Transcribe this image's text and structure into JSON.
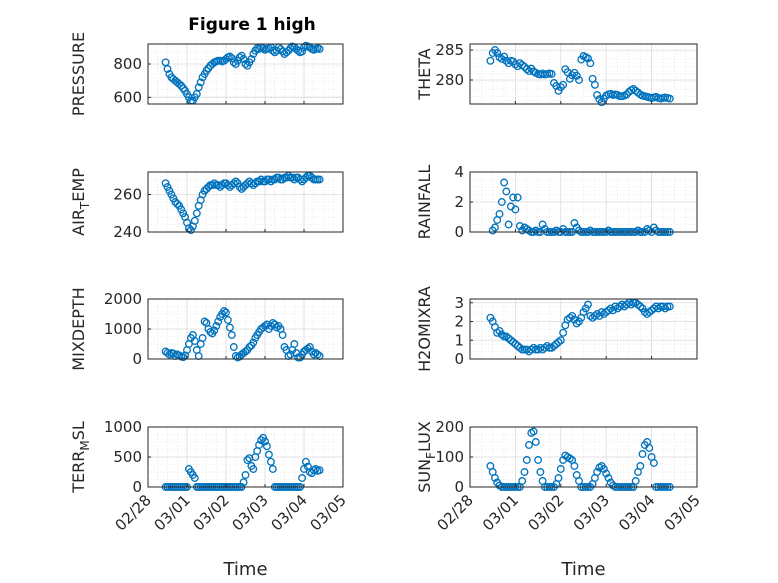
{
  "figure": {
    "title": "Figure 1 high",
    "background": "#ffffff",
    "marker_color": "#0072BD",
    "time_ticks": [
      "02/28",
      "03/01",
      "03/02",
      "03/03",
      "03/04",
      "03/05"
    ]
  },
  "chart_data": [
    {
      "type": "scatter",
      "ylabel": "PRESSURE",
      "xlabel": "",
      "title": "Figure 1 high",
      "xlim": [
        0,
        5
      ],
      "ylim": [
        560,
        920
      ],
      "yticks": [
        600,
        800
      ],
      "grid": true,
      "x": [
        0.45,
        0.5,
        0.55,
        0.6,
        0.65,
        0.7,
        0.75,
        0.8,
        0.85,
        0.9,
        0.95,
        1.0,
        1.05,
        1.1,
        1.15,
        1.2,
        1.25,
        1.3,
        1.35,
        1.4,
        1.45,
        1.5,
        1.55,
        1.6,
        1.65,
        1.7,
        1.75,
        1.8,
        1.85,
        1.9,
        1.95,
        2.0,
        2.05,
        2.1,
        2.15,
        2.2,
        2.25,
        2.3,
        2.35,
        2.4,
        2.45,
        2.5,
        2.55,
        2.6,
        2.65,
        2.7,
        2.75,
        2.8,
        2.85,
        2.9,
        2.95,
        3.0,
        3.05,
        3.1,
        3.15,
        3.2,
        3.25,
        3.3,
        3.35,
        3.4,
        3.45,
        3.5,
        3.55,
        3.6,
        3.65,
        3.7,
        3.75,
        3.8,
        3.85,
        3.9,
        3.95,
        4.0,
        4.05,
        4.1,
        4.15,
        4.2,
        4.25,
        4.3,
        4.35,
        4.4
      ],
      "y": [
        810,
        770,
        740,
        720,
        710,
        700,
        690,
        680,
        670,
        655,
        640,
        620,
        600,
        580,
        580,
        600,
        620,
        660,
        690,
        720,
        740,
        760,
        775,
        790,
        800,
        810,
        815,
        820,
        820,
        815,
        820,
        830,
        840,
        845,
        835,
        810,
        800,
        820,
        840,
        850,
        830,
        800,
        790,
        810,
        830,
        860,
        880,
        895,
        890,
        900,
        895,
        885,
        890,
        895,
        900,
        880,
        870,
        880,
        900,
        890,
        875,
        860,
        870,
        880,
        895,
        905,
        900,
        890,
        880,
        870,
        875,
        900,
        910,
        905,
        900,
        890,
        885,
        890,
        895,
        890
      ]
    },
    {
      "type": "scatter",
      "ylabel": "THETA",
      "xlabel": "",
      "xlim": [
        0,
        5
      ],
      "ylim": [
        276,
        286
      ],
      "yticks": [
        280,
        285
      ],
      "grid": true,
      "x": [
        0.45,
        0.5,
        0.55,
        0.6,
        0.65,
        0.7,
        0.75,
        0.8,
        0.85,
        0.9,
        0.95,
        1.0,
        1.05,
        1.1,
        1.15,
        1.2,
        1.25,
        1.3,
        1.35,
        1.4,
        1.45,
        1.5,
        1.55,
        1.6,
        1.65,
        1.7,
        1.75,
        1.8,
        1.85,
        1.9,
        1.95,
        2.0,
        2.05,
        2.1,
        2.15,
        2.2,
        2.25,
        2.3,
        2.35,
        2.4,
        2.45,
        2.5,
        2.55,
        2.6,
        2.65,
        2.7,
        2.75,
        2.8,
        2.85,
        2.9,
        2.95,
        3.0,
        3.05,
        3.1,
        3.15,
        3.2,
        3.25,
        3.3,
        3.35,
        3.4,
        3.45,
        3.5,
        3.55,
        3.6,
        3.65,
        3.7,
        3.75,
        3.8,
        3.85,
        3.9,
        3.95,
        4.0,
        4.05,
        4.1,
        4.15,
        4.2,
        4.25,
        4.3,
        4.35,
        4.4
      ],
      "y": [
        283.2,
        284.5,
        285,
        284.5,
        283.8,
        283.5,
        283.9,
        283.2,
        282.8,
        283.2,
        283.1,
        282.6,
        282.3,
        282.8,
        282.5,
        282.2,
        281.8,
        281.5,
        281.9,
        281.4,
        281.2,
        281.0,
        280.9,
        281.1,
        280.9,
        281.0,
        281.1,
        281.0,
        279.5,
        279.0,
        278.2,
        278.8,
        279.2,
        281.8,
        281.3,
        280.2,
        280.8,
        281.2,
        280.7,
        280.0,
        283.4,
        284.0,
        283.8,
        283.6,
        282.8,
        280.2,
        279.2,
        277.5,
        276.8,
        276.3,
        276.9,
        277.4,
        277.6,
        277.7,
        277.5,
        277.6,
        277.5,
        277.3,
        277.3,
        277.4,
        277.6,
        278.0,
        278.3,
        278.5,
        278.2,
        277.9,
        277.6,
        277.4,
        277.3,
        277.2,
        277.1,
        277.0,
        277.1,
        277.2,
        277.0,
        276.9,
        277.0,
        277.1,
        277.0,
        276.9
      ]
    },
    {
      "type": "scatter",
      "ylabel": "AIR_T_EMP",
      "xlabel": "",
      "xlim": [
        0,
        5
      ],
      "ylim": [
        240,
        272
      ],
      "yticks": [
        240,
        260
      ],
      "grid": true,
      "x": [
        0.45,
        0.5,
        0.55,
        0.6,
        0.65,
        0.7,
        0.75,
        0.8,
        0.85,
        0.9,
        0.95,
        1.0,
        1.05,
        1.1,
        1.15,
        1.2,
        1.25,
        1.3,
        1.35,
        1.4,
        1.45,
        1.5,
        1.55,
        1.6,
        1.65,
        1.7,
        1.75,
        1.8,
        1.85,
        1.9,
        1.95,
        2.0,
        2.05,
        2.1,
        2.15,
        2.2,
        2.25,
        2.3,
        2.35,
        2.4,
        2.45,
        2.5,
        2.55,
        2.6,
        2.65,
        2.7,
        2.75,
        2.8,
        2.85,
        2.9,
        2.95,
        3.0,
        3.05,
        3.1,
        3.15,
        3.2,
        3.25,
        3.3,
        3.35,
        3.4,
        3.45,
        3.5,
        3.55,
        3.6,
        3.65,
        3.7,
        3.75,
        3.8,
        3.85,
        3.9,
        3.95,
        4.0,
        4.05,
        4.1,
        4.15,
        4.2,
        4.25,
        4.3,
        4.35,
        4.4
      ],
      "y": [
        266,
        264,
        262,
        260,
        258,
        256,
        255,
        254,
        252,
        250,
        248,
        245,
        242,
        241,
        243,
        246,
        250,
        254,
        257,
        260,
        262,
        263,
        264,
        265,
        265,
        266,
        265,
        265,
        264,
        265,
        266,
        266,
        265,
        264,
        265,
        266,
        267,
        266,
        264,
        263,
        264,
        265,
        266,
        267,
        266,
        265,
        266,
        267,
        267,
        268,
        267,
        267,
        268,
        268,
        267,
        268,
        268,
        269,
        269,
        268,
        268,
        269,
        269,
        270,
        269,
        269,
        268,
        269,
        269,
        268,
        267,
        268,
        269,
        270,
        270,
        269,
        268,
        268,
        268,
        268
      ]
    },
    {
      "type": "scatter",
      "ylabel": "RAINFALL",
      "xlabel": "",
      "xlim": [
        0,
        5
      ],
      "ylim": [
        0,
        4
      ],
      "yticks": [
        0,
        2,
        4
      ],
      "grid": true,
      "x": [
        0.5,
        0.55,
        0.6,
        0.65,
        0.7,
        0.75,
        0.8,
        0.85,
        0.9,
        0.95,
        1.0,
        1.05,
        1.1,
        1.15,
        1.2,
        1.25,
        1.3,
        1.35,
        1.4,
        1.45,
        1.5,
        1.55,
        1.6,
        1.65,
        1.7,
        1.75,
        1.8,
        1.85,
        1.9,
        1.95,
        2.0,
        2.05,
        2.1,
        2.15,
        2.2,
        2.25,
        2.3,
        2.35,
        2.4,
        2.45,
        2.5,
        2.55,
        2.6,
        2.65,
        2.7,
        2.75,
        2.8,
        2.85,
        2.9,
        2.95,
        3.0,
        3.05,
        3.1,
        3.15,
        3.2,
        3.25,
        3.3,
        3.35,
        3.4,
        3.45,
        3.5,
        3.55,
        3.6,
        3.65,
        3.7,
        3.75,
        3.8,
        3.85,
        3.9,
        3.95,
        4.0,
        4.05,
        4.1,
        4.15,
        4.2,
        4.25,
        4.3,
        4.35,
        4.4
      ],
      "y": [
        0.1,
        0.3,
        0.8,
        1.2,
        2.0,
        3.3,
        2.7,
        0.5,
        1.7,
        2.3,
        1.5,
        2.3,
        0.4,
        0.1,
        0.3,
        0.2,
        0.1,
        0,
        0,
        0.1,
        0,
        0,
        0.5,
        0.2,
        0,
        0,
        0,
        0,
        0.1,
        0,
        0,
        0.2,
        0,
        0,
        0,
        0,
        0.6,
        0.3,
        0.1,
        0,
        0,
        0,
        0,
        0.1,
        0,
        0,
        0,
        0,
        0,
        0,
        0,
        0.1,
        0,
        0,
        0,
        0,
        0,
        0,
        0,
        0,
        0,
        0,
        0,
        0,
        0.1,
        0,
        0,
        0,
        0.2,
        0.1,
        0,
        0.3,
        0.1,
        0,
        0,
        0,
        0,
        0,
        0
      ]
    },
    {
      "type": "scatter",
      "ylabel": "MIXDEPTH",
      "xlabel": "",
      "xlim": [
        0,
        5
      ],
      "ylim": [
        0,
        2000
      ],
      "yticks": [
        0,
        1000,
        2000
      ],
      "grid": true,
      "x": [
        0.45,
        0.5,
        0.55,
        0.6,
        0.65,
        0.7,
        0.75,
        0.8,
        0.85,
        0.9,
        0.95,
        1.0,
        1.05,
        1.1,
        1.15,
        1.2,
        1.25,
        1.3,
        1.35,
        1.4,
        1.45,
        1.5,
        1.55,
        1.6,
        1.65,
        1.7,
        1.75,
        1.8,
        1.85,
        1.9,
        1.95,
        2.0,
        2.05,
        2.1,
        2.15,
        2.2,
        2.25,
        2.3,
        2.35,
        2.4,
        2.45,
        2.5,
        2.55,
        2.6,
        2.65,
        2.7,
        2.75,
        2.8,
        2.85,
        2.9,
        2.95,
        3.0,
        3.05,
        3.1,
        3.15,
        3.2,
        3.25,
        3.3,
        3.35,
        3.4,
        3.45,
        3.5,
        3.55,
        3.6,
        3.65,
        3.7,
        3.75,
        3.8,
        3.85,
        3.9,
        3.95,
        4.0,
        4.05,
        4.1,
        4.15,
        4.2,
        4.25,
        4.3,
        4.35,
        4.4
      ],
      "y": [
        250,
        200,
        150,
        200,
        180,
        100,
        150,
        120,
        80,
        60,
        120,
        300,
        500,
        700,
        800,
        600,
        300,
        100,
        500,
        700,
        1250,
        1200,
        1000,
        900,
        850,
        950,
        1100,
        1250,
        1400,
        1500,
        1600,
        1550,
        1300,
        1050,
        800,
        400,
        100,
        50,
        80,
        150,
        200,
        250,
        300,
        400,
        450,
        550,
        700,
        800,
        900,
        1000,
        1050,
        1100,
        1150,
        1000,
        1100,
        1200,
        1150,
        1050,
        1100,
        1000,
        800,
        400,
        300,
        100,
        150,
        300,
        500,
        200,
        50,
        50,
        150,
        250,
        300,
        350,
        400,
        250,
        150,
        200,
        150,
        100
      ]
    },
    {
      "type": "scatter",
      "ylabel": "H2OMIXRA",
      "xlabel": "",
      "xlim": [
        0,
        5
      ],
      "ylim": [
        0,
        3.2
      ],
      "yticks": [
        0,
        1,
        2,
        3
      ],
      "grid": true,
      "x": [
        0.45,
        0.5,
        0.55,
        0.6,
        0.65,
        0.7,
        0.75,
        0.8,
        0.85,
        0.9,
        0.95,
        1.0,
        1.05,
        1.1,
        1.15,
        1.2,
        1.25,
        1.3,
        1.35,
        1.4,
        1.45,
        1.5,
        1.55,
        1.6,
        1.65,
        1.7,
        1.75,
        1.8,
        1.85,
        1.9,
        1.95,
        2.0,
        2.05,
        2.1,
        2.15,
        2.2,
        2.25,
        2.3,
        2.35,
        2.4,
        2.45,
        2.5,
        2.55,
        2.6,
        2.65,
        2.7,
        2.75,
        2.8,
        2.85,
        2.9,
        2.95,
        3.0,
        3.05,
        3.1,
        3.15,
        3.2,
        3.25,
        3.3,
        3.35,
        3.4,
        3.45,
        3.5,
        3.55,
        3.6,
        3.65,
        3.7,
        3.75,
        3.8,
        3.85,
        3.9,
        3.95,
        4.0,
        4.05,
        4.1,
        4.15,
        4.2,
        4.25,
        4.3,
        4.35,
        4.4
      ],
      "y": [
        2.2,
        2.0,
        1.7,
        1.4,
        1.5,
        1.3,
        1.2,
        1.2,
        1.1,
        1.0,
        0.9,
        0.8,
        0.7,
        0.6,
        0.5,
        0.5,
        0.5,
        0.4,
        0.5,
        0.6,
        0.5,
        0.5,
        0.6,
        0.5,
        0.6,
        0.7,
        0.6,
        0.6,
        0.7,
        0.8,
        0.9,
        1.0,
        1.4,
        1.8,
        2.1,
        2.2,
        2.3,
        2.1,
        1.9,
        2.0,
        2.2,
        2.5,
        2.7,
        2.9,
        2.3,
        2.2,
        2.3,
        2.4,
        2.3,
        2.5,
        2.4,
        2.5,
        2.6,
        2.7,
        2.6,
        2.8,
        2.7,
        2.8,
        2.9,
        2.8,
        2.9,
        3.0,
        2.9,
        3.0,
        3.0,
        2.9,
        2.8,
        2.7,
        2.5,
        2.4,
        2.5,
        2.6,
        2.7,
        2.8,
        2.7,
        2.8,
        2.8,
        2.7,
        2.8,
        2.8
      ]
    },
    {
      "type": "scatter",
      "ylabel": "TERR_M_SL",
      "xlabel": "Time",
      "xlim": [
        0,
        5
      ],
      "ylim": [
        0,
        1000
      ],
      "yticks": [
        0,
        500,
        1000
      ],
      "grid": true,
      "x": [
        0.45,
        0.5,
        0.55,
        0.6,
        0.65,
        0.7,
        0.75,
        0.8,
        0.85,
        0.9,
        0.95,
        1.0,
        1.05,
        1.1,
        1.15,
        1.2,
        1.25,
        1.3,
        1.35,
        1.4,
        1.45,
        1.5,
        1.55,
        1.6,
        1.65,
        1.7,
        1.75,
        1.8,
        1.85,
        1.9,
        1.95,
        2.0,
        2.05,
        2.1,
        2.15,
        2.2,
        2.25,
        2.3,
        2.35,
        2.4,
        2.45,
        2.5,
        2.55,
        2.6,
        2.65,
        2.7,
        2.75,
        2.8,
        2.85,
        2.9,
        2.95,
        3.0,
        3.05,
        3.1,
        3.15,
        3.2,
        3.25,
        3.3,
        3.35,
        3.4,
        3.45,
        3.5,
        3.55,
        3.6,
        3.65,
        3.7,
        3.75,
        3.8,
        3.85,
        3.9,
        3.95,
        4.0,
        4.05,
        4.1,
        4.15,
        4.2,
        4.25,
        4.3,
        4.35,
        4.4
      ],
      "y": [
        0,
        0,
        0,
        0,
        0,
        0,
        0,
        0,
        0,
        0,
        0,
        0,
        300,
        250,
        200,
        150,
        0,
        0,
        0,
        0,
        0,
        0,
        0,
        0,
        0,
        0,
        0,
        0,
        0,
        0,
        0,
        0,
        0,
        0,
        0,
        0,
        0,
        0,
        0,
        0,
        80,
        200,
        450,
        480,
        350,
        300,
        500,
        600,
        700,
        780,
        820,
        760,
        680,
        540,
        420,
        300,
        0,
        0,
        0,
        0,
        0,
        0,
        0,
        0,
        0,
        0,
        0,
        0,
        0,
        0,
        150,
        300,
        420,
        340,
        250,
        230,
        280,
        300,
        270,
        280
      ]
    },
    {
      "type": "scatter",
      "ylabel": "SUN_F_LUX",
      "xlabel": "Time",
      "xlim": [
        0,
        5
      ],
      "ylim": [
        0,
        200
      ],
      "yticks": [
        0,
        100,
        200
      ],
      "grid": true,
      "x": [
        0.45,
        0.5,
        0.55,
        0.6,
        0.65,
        0.7,
        0.75,
        0.8,
        0.85,
        0.9,
        0.95,
        1.0,
        1.05,
        1.1,
        1.15,
        1.2,
        1.25,
        1.3,
        1.35,
        1.4,
        1.45,
        1.5,
        1.55,
        1.6,
        1.65,
        1.7,
        1.75,
        1.8,
        1.85,
        1.9,
        1.95,
        2.0,
        2.05,
        2.1,
        2.15,
        2.2,
        2.25,
        2.3,
        2.35,
        2.4,
        2.45,
        2.5,
        2.55,
        2.6,
        2.65,
        2.7,
        2.75,
        2.8,
        2.85,
        2.9,
        2.95,
        3.0,
        3.05,
        3.1,
        3.15,
        3.2,
        3.25,
        3.3,
        3.35,
        3.4,
        3.45,
        3.5,
        3.55,
        3.6,
        3.65,
        3.7,
        3.75,
        3.8,
        3.85,
        3.9,
        3.95,
        4.0,
        4.05,
        4.1,
        4.15,
        4.2,
        4.25,
        4.3,
        4.35,
        4.4
      ],
      "y": [
        70,
        50,
        30,
        15,
        5,
        0,
        0,
        0,
        0,
        0,
        0,
        0,
        0,
        0,
        20,
        50,
        90,
        140,
        180,
        185,
        150,
        90,
        50,
        20,
        0,
        0,
        0,
        0,
        0,
        10,
        30,
        60,
        90,
        105,
        100,
        95,
        90,
        70,
        40,
        20,
        0,
        0,
        0,
        0,
        0,
        10,
        30,
        50,
        65,
        70,
        60,
        45,
        30,
        15,
        5,
        0,
        0,
        0,
        0,
        0,
        0,
        0,
        0,
        0,
        20,
        50,
        70,
        110,
        140,
        150,
        130,
        100,
        80,
        0,
        0,
        0,
        0,
        0,
        0,
        0
      ]
    }
  ]
}
